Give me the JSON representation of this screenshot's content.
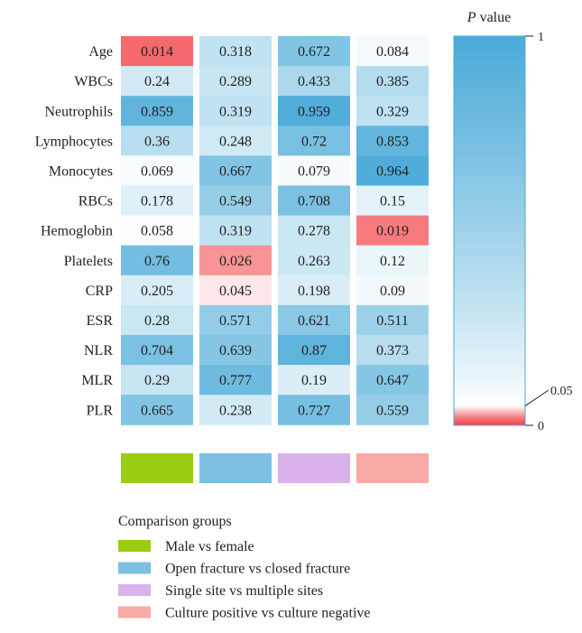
{
  "chart_data": {
    "type": "heatmap",
    "rows": [
      "Age",
      "WBCs",
      "Neutrophils",
      "Lymphocytes",
      "Monocytes",
      "RBCs",
      "Hemoglobin",
      "Platelets",
      "CRP",
      "ESR",
      "NLR",
      "MLR",
      "PLR"
    ],
    "columns": [
      "Male vs female",
      "Open fracture vs closed fracture",
      "Single site vs multiple sites",
      "Culture positive vs culture negative"
    ],
    "values": [
      [
        "0.014",
        "0.318",
        "0.672",
        "0.084"
      ],
      [
        "0.24",
        "0.289",
        "0.433",
        "0.385"
      ],
      [
        "0.859",
        "0.319",
        "0.959",
        "0.329"
      ],
      [
        "0.36",
        "0.248",
        "0.72",
        "0.853"
      ],
      [
        "0.069",
        "0.667",
        "0.079",
        "0.964"
      ],
      [
        "0.178",
        "0.549",
        "0.708",
        "0.15"
      ],
      [
        "0.058",
        "0.319",
        "0.278",
        "0.019"
      ],
      [
        "0.76",
        "0.026",
        "0.263",
        "0.12"
      ],
      [
        "0.205",
        "0.045",
        "0.198",
        "0.09"
      ],
      [
        "0.28",
        "0.571",
        "0.621",
        "0.511"
      ],
      [
        "0.704",
        "0.639",
        "0.87",
        "0.373"
      ],
      [
        "0.29",
        "0.777",
        "0.19",
        "0.647"
      ],
      [
        "0.665",
        "0.238",
        "0.727",
        "0.559"
      ]
    ],
    "group_colors": [
      "#9acd12",
      "#7dbfe2",
      "#d9b2ec",
      "#f8aaa6"
    ],
    "legend_title": "Comparison groups",
    "colorbar": {
      "title_italic": "P",
      "title_rest": " value",
      "ticks": [
        {
          "value": 1,
          "label": "1"
        },
        {
          "value": 0.05,
          "label": "0.05"
        },
        {
          "value": 0,
          "label": "0"
        }
      ],
      "low_color": "#f2454a",
      "threshold": 0.05,
      "high_color": "#4aaad8"
    }
  }
}
